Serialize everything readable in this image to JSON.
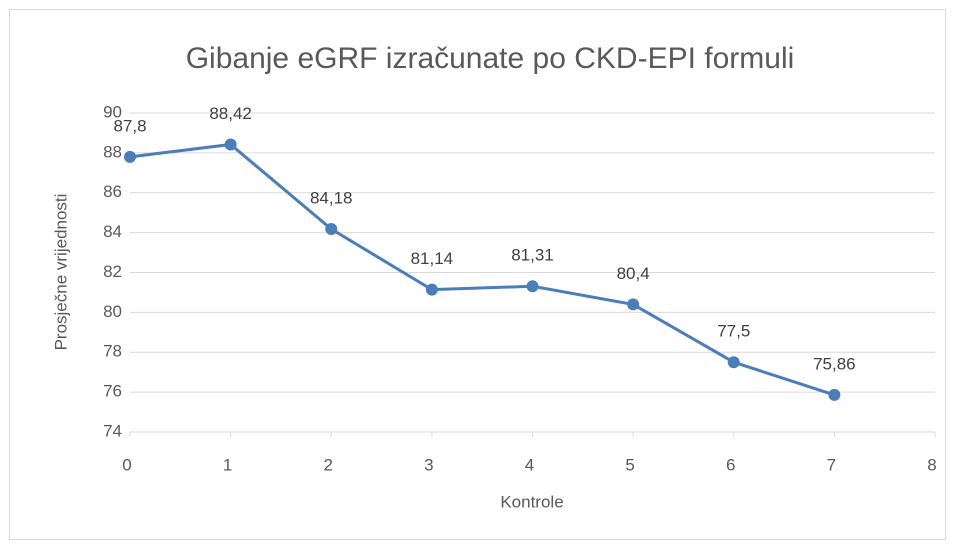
{
  "chart_data": {
    "type": "line",
    "title": "Gibanje eGRF izračunate po  CKD-EPI formuli",
    "xlabel": "Kontrole",
    "ylabel": "Prosječne vrijednosti",
    "x": [
      0,
      1,
      2,
      3,
      4,
      5,
      6,
      7
    ],
    "series": [
      {
        "name": "eGRF",
        "color": "#4a7ebb",
        "values": [
          87.8,
          88.42,
          84.18,
          81.14,
          81.31,
          80.4,
          77.5,
          75.86
        ],
        "value_labels": [
          "87,8",
          "88,42",
          "84,18",
          "81,14",
          "81,31",
          "80,4",
          "77,5",
          "75,86"
        ]
      }
    ],
    "xlim": [
      0,
      8
    ],
    "xticks": [
      0,
      1,
      2,
      3,
      4,
      5,
      6,
      7,
      8
    ],
    "ylim": [
      74,
      90
    ],
    "yticks": [
      74,
      76,
      78,
      80,
      82,
      84,
      86,
      88,
      90
    ],
    "grid": true
  }
}
